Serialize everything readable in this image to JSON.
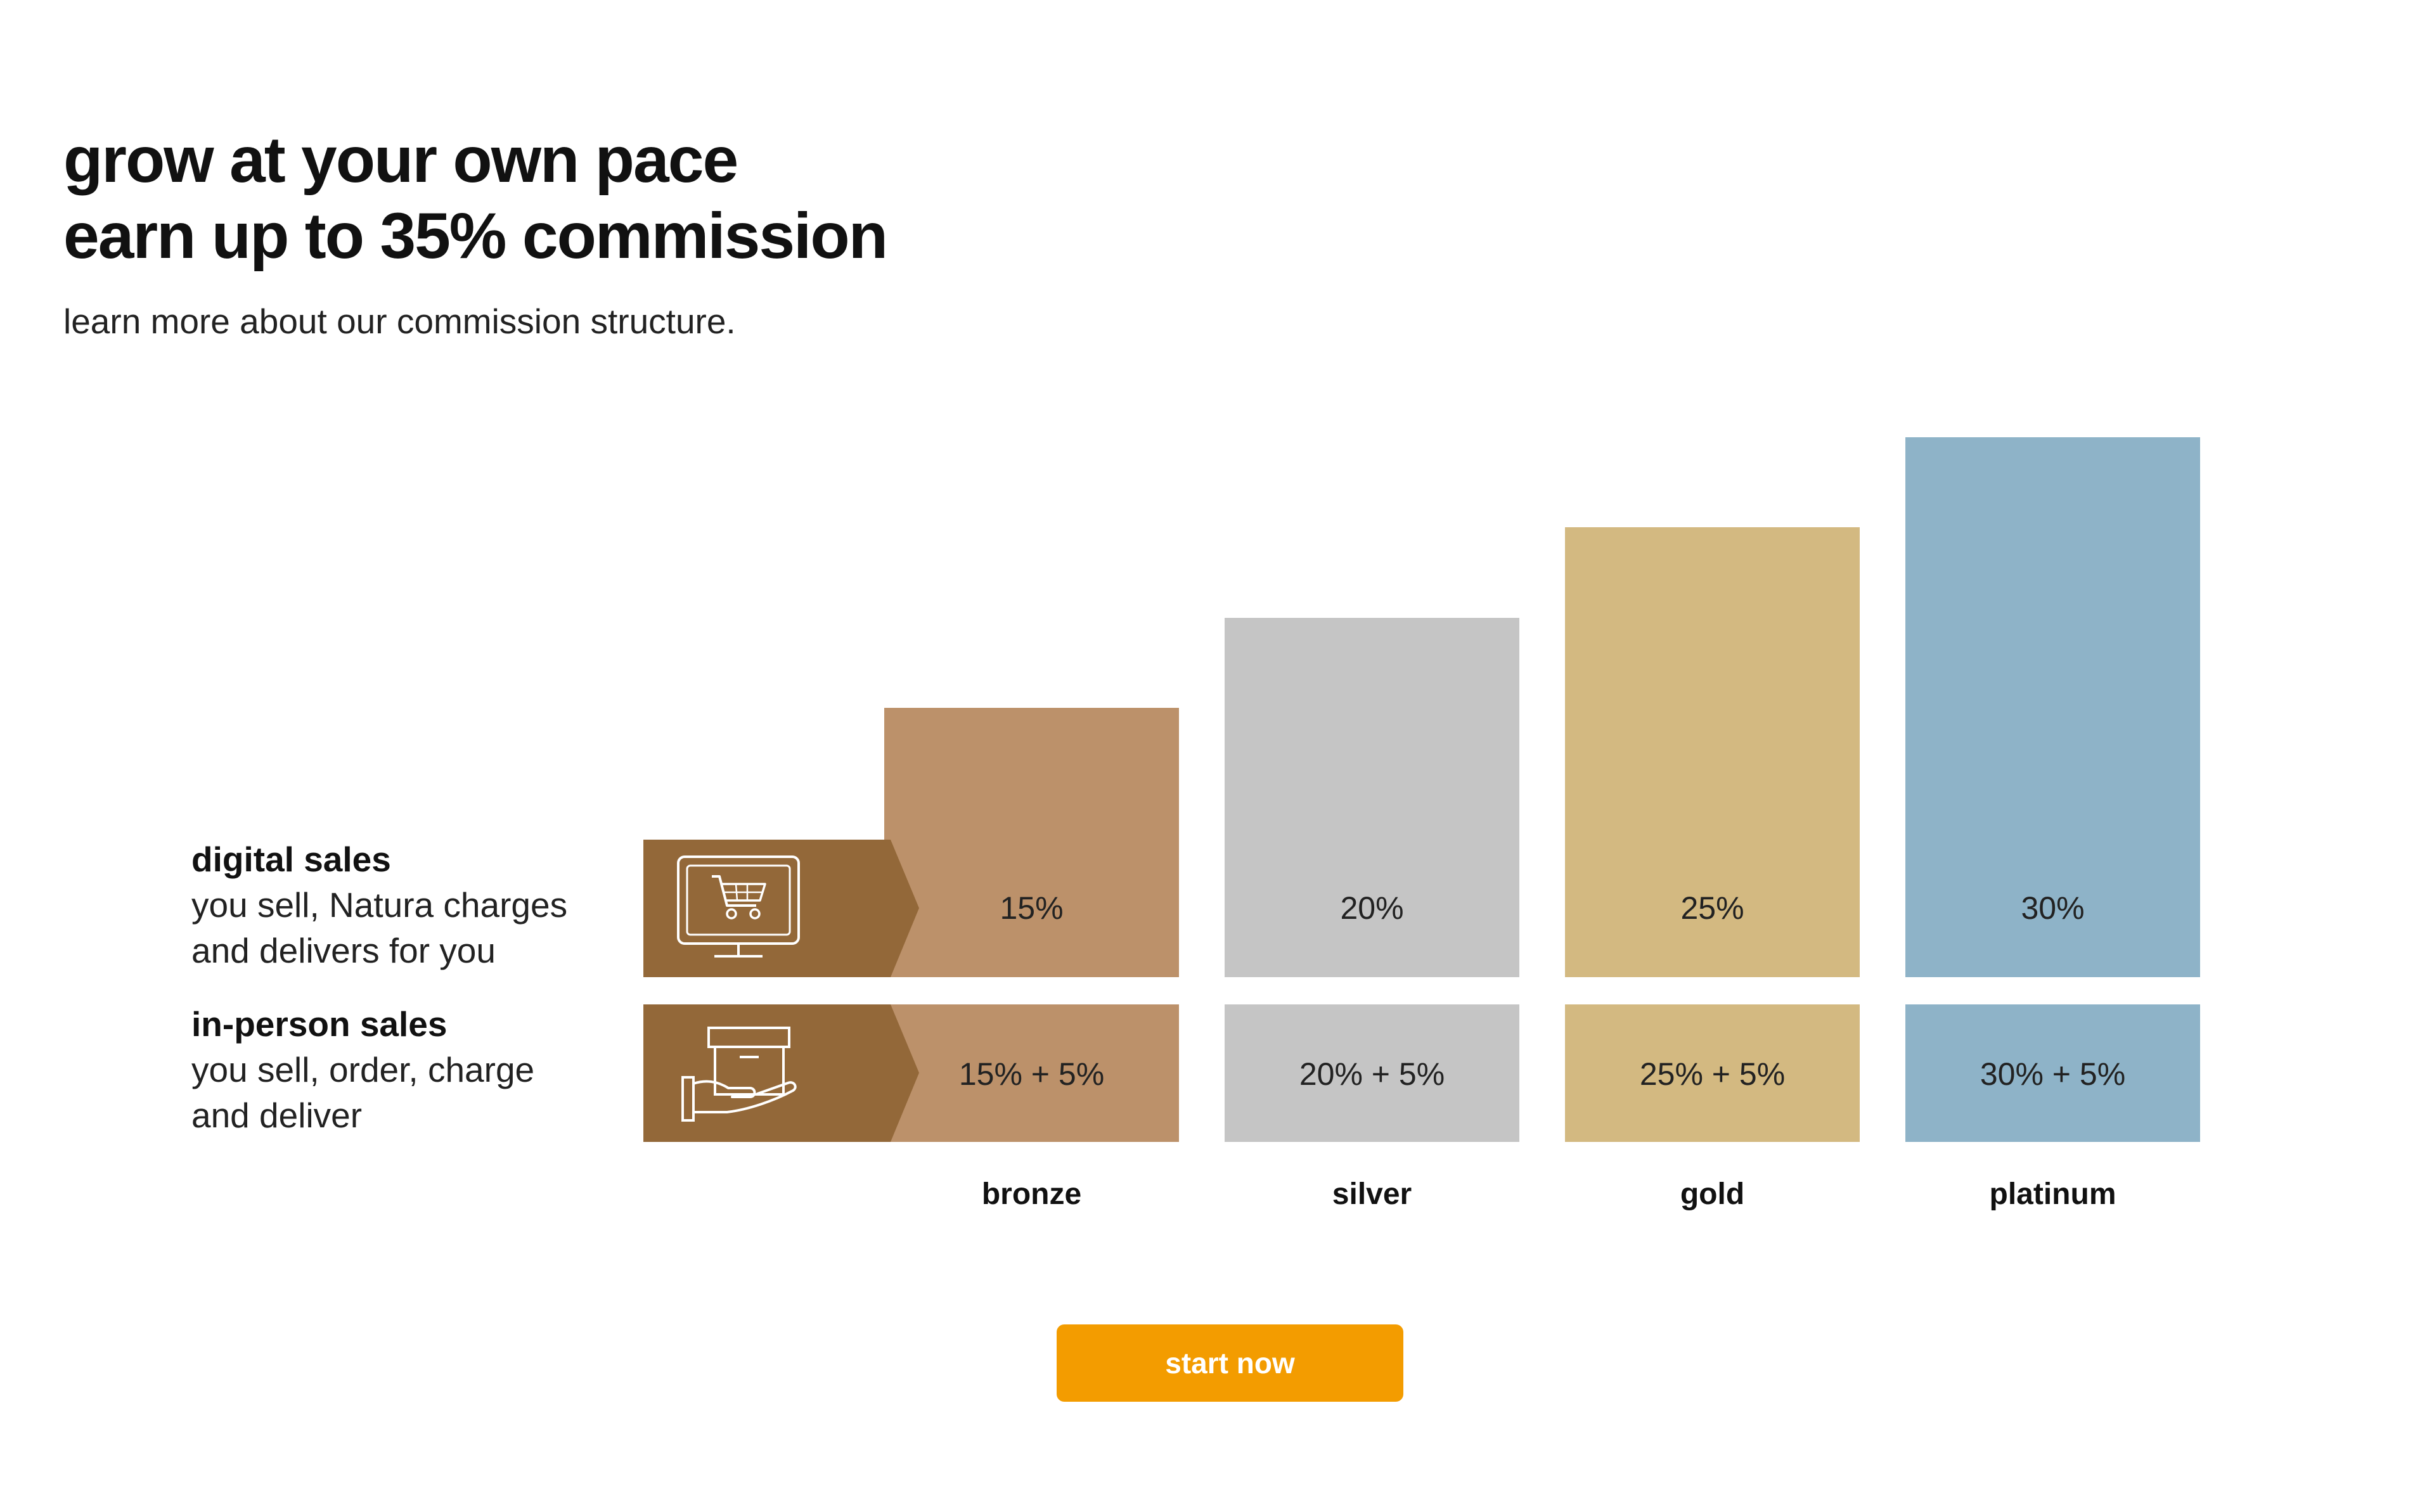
{
  "header": {
    "title_line1": "grow at your own pace",
    "title_line2": "earn up to 35% commission",
    "subtitle": "learn more about our commission structure."
  },
  "rows": [
    {
      "id": "digital",
      "title": "digital sales",
      "description": "you sell, Natura charges\nand delivers for you",
      "icon": "shopping-cart-monitor-icon"
    },
    {
      "id": "in-person",
      "title": "in-person sales",
      "description": "you sell, order, charge\nand deliver",
      "icon": "hand-holding-box-icon"
    }
  ],
  "tiers": [
    {
      "name": "bronze",
      "digital": "15%",
      "in_person": "15% + 5%",
      "color": "#BC916A",
      "level": 15
    },
    {
      "name": "silver",
      "digital": "20%",
      "in_person": "20% + 5%",
      "color": "#C5C5C5",
      "level": 20
    },
    {
      "name": "gold",
      "digital": "25%",
      "in_person": "25% + 5%",
      "color": "#D3B981",
      "level": 25
    },
    {
      "name": "platinum",
      "digital": "30%",
      "in_person": "30% + 5%",
      "color": "#8EB3C8",
      "level": 30
    }
  ],
  "colors": {
    "icon_block": "#936839",
    "button": "#F39C00",
    "text": "#111111"
  },
  "cta": {
    "label": "start now"
  }
}
